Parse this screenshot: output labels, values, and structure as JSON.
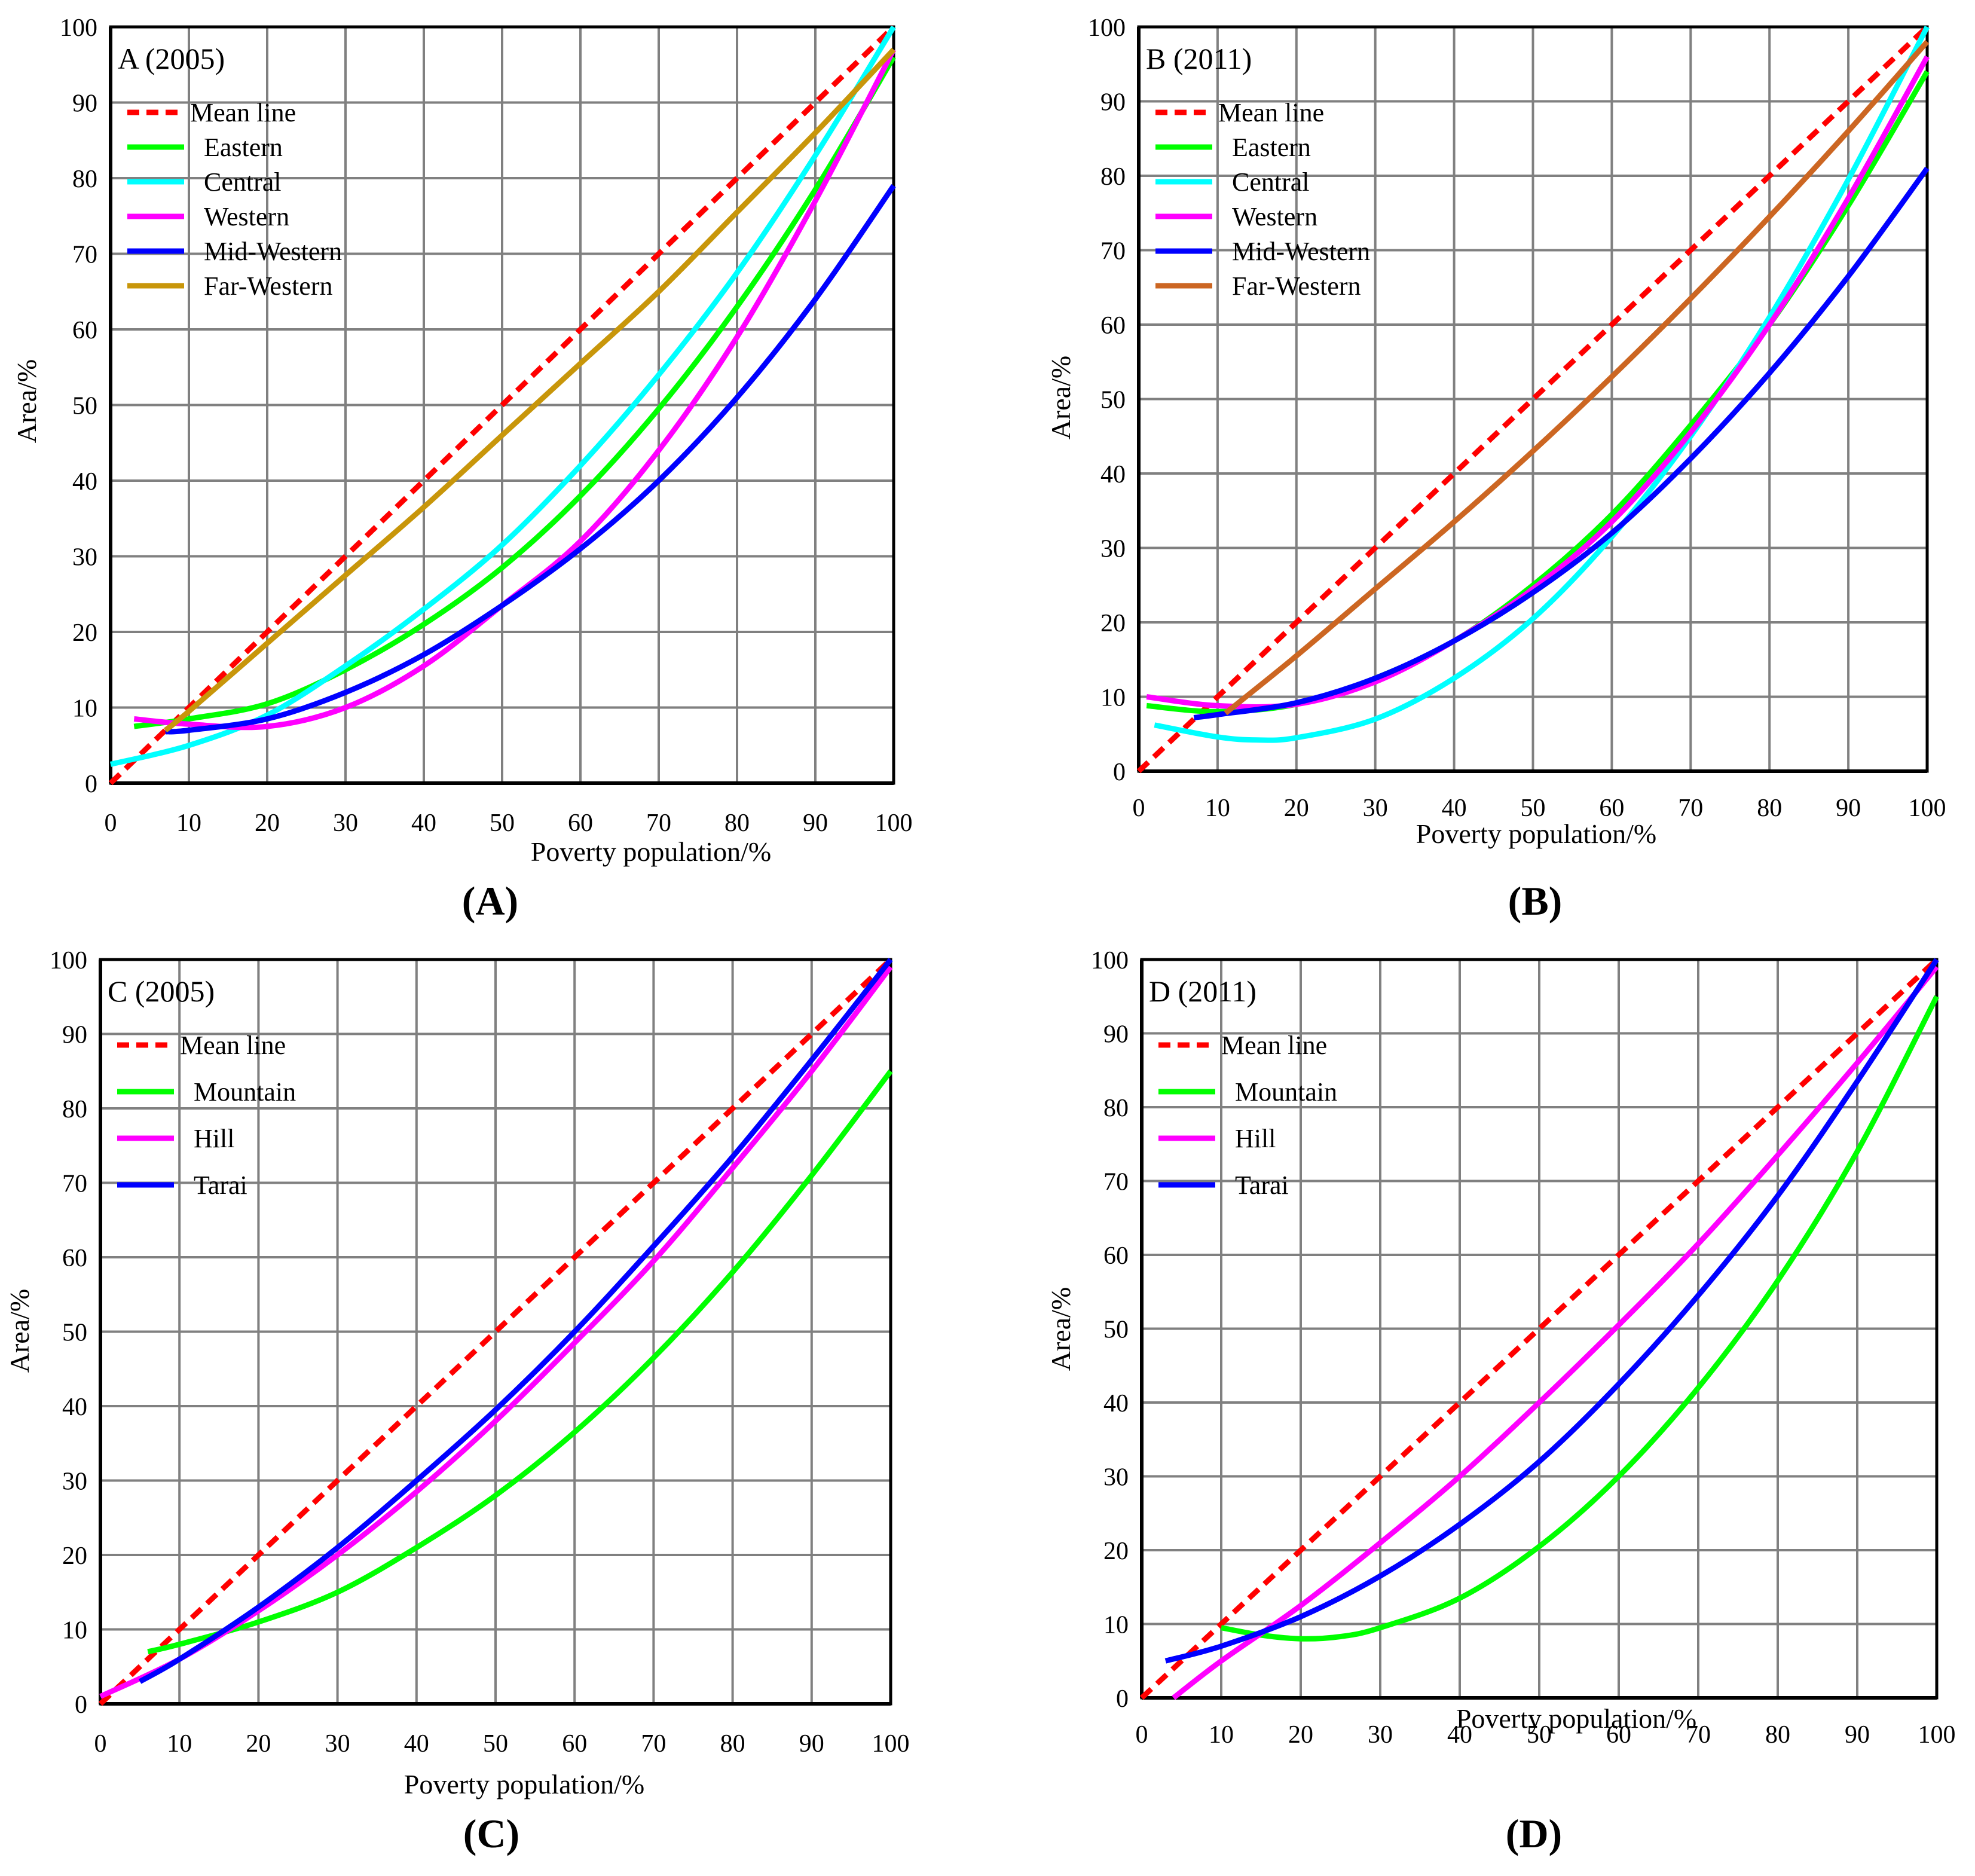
{
  "chart_data": [
    {
      "id": "A",
      "type": "line",
      "title": "A (2005)",
      "caption": "(A)",
      "xlabel": "Poverty population/%",
      "ylabel": "Area/%",
      "xlim": [
        0,
        100
      ],
      "ylim": [
        0,
        100
      ],
      "ticks": [
        0,
        10,
        20,
        30,
        40,
        50,
        60,
        70,
        80,
        90,
        100
      ],
      "grid": true,
      "legend_position": "top-left",
      "series": [
        {
          "name": "Mean line",
          "color": "#ff0000",
          "dashed": true,
          "x": [
            0,
            100
          ],
          "y": [
            0,
            100
          ]
        },
        {
          "name": "Eastern",
          "color": "#00ff00",
          "dashed": false,
          "x": [
            3,
            10,
            20,
            30,
            40,
            50,
            60,
            70,
            80,
            90,
            100
          ],
          "y": [
            7.5,
            8.5,
            10.5,
            15,
            21,
            28.5,
            38,
            49.5,
            63,
            78.5,
            96
          ]
        },
        {
          "name": "Central",
          "color": "#00ffff",
          "dashed": false,
          "x": [
            0,
            10,
            20,
            30,
            40,
            50,
            60,
            70,
            80,
            90,
            100
          ],
          "y": [
            2.5,
            5,
            9,
            15.5,
            23,
            31.5,
            42,
            54,
            67.5,
            83,
            100
          ]
        },
        {
          "name": "Western",
          "color": "#ff00ff",
          "dashed": false,
          "x": [
            3,
            10,
            20,
            30,
            40,
            50,
            60,
            70,
            80,
            90,
            100
          ],
          "y": [
            8.5,
            7.8,
            7.5,
            10,
            15.5,
            23.5,
            32,
            44,
            59,
            77,
            97
          ]
        },
        {
          "name": "Mid-Western",
          "color": "#0000ff",
          "dashed": false,
          "x": [
            7,
            10,
            20,
            30,
            40,
            50,
            60,
            70,
            80,
            90,
            100
          ],
          "y": [
            6.8,
            7,
            8.5,
            12,
            17,
            23.5,
            31,
            40,
            51,
            64,
            79
          ]
        },
        {
          "name": "Far-Western",
          "color": "#c8960a",
          "dashed": false,
          "x": [
            7,
            10,
            20,
            30,
            40,
            50,
            60,
            70,
            80,
            90,
            100
          ],
          "y": [
            7,
            9.5,
            18.5,
            27.5,
            36.5,
            46,
            55.5,
            65,
            75.5,
            86,
            97
          ]
        }
      ]
    },
    {
      "id": "B",
      "type": "line",
      "title": "B (2011)",
      "caption": "(B)",
      "xlabel": "Poverty population/%",
      "ylabel": "Area/%",
      "xlim": [
        0,
        100
      ],
      "ylim": [
        0,
        100
      ],
      "ticks": [
        0,
        10,
        20,
        30,
        40,
        50,
        60,
        70,
        80,
        90,
        100
      ],
      "grid": true,
      "legend_position": "top-left",
      "series": [
        {
          "name": "Mean line",
          "color": "#ff0000",
          "dashed": true,
          "x": [
            0,
            100
          ],
          "y": [
            0,
            100
          ]
        },
        {
          "name": "Eastern",
          "color": "#00ff00",
          "dashed": false,
          "x": [
            1,
            10,
            20,
            30,
            40,
            50,
            60,
            70,
            80,
            90,
            100
          ],
          "y": [
            8.8,
            8,
            9,
            12.5,
            17.5,
            25,
            34.5,
            46.5,
            60,
            76,
            94
          ]
        },
        {
          "name": "Central",
          "color": "#00ffff",
          "dashed": false,
          "x": [
            2,
            10,
            15,
            20,
            30,
            40,
            50,
            60,
            70,
            80,
            90,
            100
          ],
          "y": [
            6.2,
            4.6,
            4.2,
            4.5,
            7,
            12.5,
            20.5,
            31.5,
            45,
            61,
            79.5,
            100
          ]
        },
        {
          "name": "Western",
          "color": "#ff00ff",
          "dashed": false,
          "x": [
            1,
            10,
            20,
            30,
            40,
            50,
            60,
            70,
            80,
            90,
            100
          ],
          "y": [
            10,
            8.8,
            9,
            12,
            17.5,
            24.5,
            33.5,
            45.5,
            60,
            77,
            96
          ]
        },
        {
          "name": "Mid-Western",
          "color": "#0000ff",
          "dashed": false,
          "x": [
            7,
            10,
            20,
            30,
            40,
            50,
            60,
            70,
            80,
            90,
            100
          ],
          "y": [
            7.2,
            7.6,
            9.2,
            12.5,
            17.5,
            24,
            32,
            42,
            53.5,
            66.5,
            81
          ]
        },
        {
          "name": "Far-Western",
          "color": "#cc6622",
          "dashed": false,
          "x": [
            11,
            20,
            30,
            40,
            50,
            60,
            70,
            80,
            90,
            100
          ],
          "y": [
            7.8,
            15.5,
            24.5,
            33.5,
            43,
            53,
            63.5,
            74.5,
            86,
            98
          ]
        }
      ]
    },
    {
      "id": "C",
      "type": "line",
      "title": "C (2005)",
      "caption": "(C)",
      "xlabel": "Poverty population/%",
      "ylabel": "Area/%",
      "xlim": [
        0,
        100
      ],
      "ylim": [
        0,
        100
      ],
      "ticks": [
        0,
        10,
        20,
        30,
        40,
        50,
        60,
        70,
        80,
        90,
        100
      ],
      "grid": true,
      "legend_position": "top-left",
      "series": [
        {
          "name": "Mean line",
          "color": "#ff0000",
          "dashed": true,
          "x": [
            0,
            100
          ],
          "y": [
            0,
            100
          ]
        },
        {
          "name": "Mountain",
          "color": "#00ff00",
          "dashed": false,
          "x": [
            6,
            10,
            20,
            30,
            40,
            50,
            60,
            70,
            80,
            90,
            100
          ],
          "y": [
            7,
            8,
            11,
            15,
            21,
            28,
            36.5,
            46.5,
            58,
            71,
            85
          ]
        },
        {
          "name": "Hill",
          "color": "#ff00ff",
          "dashed": false,
          "x": [
            0,
            10,
            20,
            30,
            40,
            50,
            60,
            70,
            80,
            90,
            100
          ],
          "y": [
            1,
            6,
            12.5,
            20,
            28.5,
            38,
            48.5,
            59.5,
            72,
            85,
            99
          ]
        },
        {
          "name": "Tarai",
          "color": "#0000ff",
          "dashed": false,
          "x": [
            5,
            10,
            20,
            30,
            40,
            50,
            60,
            70,
            80,
            90,
            100
          ],
          "y": [
            3,
            6,
            13,
            21,
            30,
            39.5,
            50,
            61.5,
            73.5,
            86.5,
            100
          ]
        }
      ]
    },
    {
      "id": "D",
      "type": "line",
      "title": "D (2011)",
      "caption": "(D)",
      "xlabel": "Poverty population/%",
      "ylabel": "Area/%",
      "xlim": [
        0,
        100
      ],
      "ylim": [
        0,
        100
      ],
      "ticks": [
        0,
        10,
        20,
        30,
        40,
        50,
        60,
        70,
        80,
        90,
        100
      ],
      "grid": true,
      "legend_position": "top-left",
      "series": [
        {
          "name": "Mean line",
          "color": "#ff0000",
          "dashed": true,
          "x": [
            0,
            100
          ],
          "y": [
            0,
            100
          ]
        },
        {
          "name": "Mountain",
          "color": "#00ff00",
          "dashed": false,
          "x": [
            10,
            15,
            20,
            25,
            30,
            40,
            50,
            60,
            70,
            80,
            90,
            100
          ],
          "y": [
            9.5,
            8.5,
            8,
            8.3,
            9.5,
            13.5,
            20.5,
            30,
            42,
            56.5,
            74,
            95
          ]
        },
        {
          "name": "Hill",
          "color": "#ff00ff",
          "dashed": false,
          "x": [
            4,
            10,
            20,
            30,
            40,
            50,
            60,
            70,
            80,
            90,
            100
          ],
          "y": [
            0,
            5,
            12.5,
            21,
            30,
            40,
            50.5,
            61.5,
            73.5,
            86,
            99
          ]
        },
        {
          "name": "Tarai",
          "color": "#0000ff",
          "dashed": false,
          "x": [
            3,
            10,
            20,
            30,
            40,
            50,
            60,
            70,
            80,
            90,
            100
          ],
          "y": [
            5,
            7,
            11,
            16.5,
            23.5,
            32,
            42.5,
            54.5,
            68,
            83.5,
            100
          ]
        }
      ]
    }
  ]
}
